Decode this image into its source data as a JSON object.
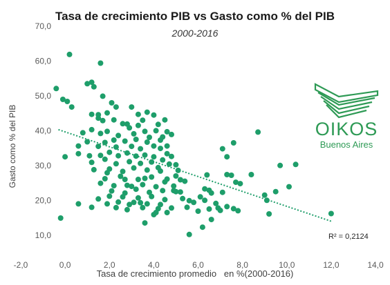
{
  "chart_data": {
    "type": "scatter",
    "title": "Tasa de crecimiento PIB vs Gasto como % del PIB",
    "subtitle": "2000-2016",
    "xlabel": "Tasa de crecimiento promedio   en %(2000-2016)",
    "ylabel": "Gasto como % del PIB",
    "xlim": [
      -2,
      14
    ],
    "ylim": [
      5,
      70
    ],
    "x_ticks": [
      "-2,0",
      "0,0",
      "2,0",
      "4,0",
      "6,0",
      "8,0",
      "10,0",
      "12,0",
      "14,0"
    ],
    "y_ticks": [
      "10,0",
      "20,0",
      "30,0",
      "40,0",
      "50,0",
      "60,0",
      "70,0"
    ],
    "grid": false,
    "marker_color": "#1e9e6a",
    "trendline": {
      "type": "linear",
      "style": "dotted",
      "x": [
        -0.3,
        12.0
      ],
      "y": [
        40.3,
        14.0
      ],
      "r2_label": "R² = 0,2124"
    },
    "points": [
      [
        0.2,
        61.9
      ],
      [
        1.6,
        59.4
      ],
      [
        -0.4,
        52.1
      ],
      [
        1.0,
        53.5
      ],
      [
        1.2,
        53.9
      ],
      [
        1.3,
        52.6
      ],
      [
        -0.1,
        49.0
      ],
      [
        0.1,
        48.4
      ],
      [
        0.3,
        46.8
      ],
      [
        1.7,
        49.9
      ],
      [
        2.1,
        48.0
      ],
      [
        2.3,
        46.8
      ],
      [
        1.2,
        44.7
      ],
      [
        1.5,
        44.6
      ],
      [
        1.9,
        45.1
      ],
      [
        2.2,
        43.1
      ],
      [
        1.5,
        43.6
      ],
      [
        3.0,
        46.8
      ],
      [
        3.3,
        44.7
      ],
      [
        3.5,
        43.0
      ],
      [
        3.7,
        45.3
      ],
      [
        4.0,
        44.5
      ],
      [
        4.2,
        41.8
      ],
      [
        4.5,
        43.1
      ],
      [
        0.8,
        39.4
      ],
      [
        1.2,
        40.3
      ],
      [
        1.6,
        39.2
      ],
      [
        1.9,
        39.8
      ],
      [
        2.2,
        37.3
      ],
      [
        2.6,
        42.0
      ],
      [
        2.8,
        41.9
      ],
      [
        3.1,
        39.1
      ],
      [
        3.3,
        41.5
      ],
      [
        3.6,
        39.8
      ],
      [
        3.8,
        38.1
      ],
      [
        4.1,
        40.0
      ],
      [
        4.4,
        38.2
      ],
      [
        4.6,
        39.7
      ],
      [
        4.8,
        38.9
      ],
      [
        0.6,
        35.6
      ],
      [
        1.0,
        36.8
      ],
      [
        1.5,
        35.5
      ],
      [
        1.8,
        36.6
      ],
      [
        2.3,
        35.3
      ],
      [
        2.7,
        37.0
      ],
      [
        3.0,
        35.5
      ],
      [
        3.4,
        34.8
      ],
      [
        3.7,
        36.7
      ],
      [
        4.0,
        35.6
      ],
      [
        4.3,
        34.9
      ],
      [
        4.6,
        35.6
      ],
      [
        0.6,
        33.4
      ],
      [
        1.1,
        32.8
      ],
      [
        1.6,
        32.9
      ],
      [
        2.0,
        33.8
      ],
      [
        2.4,
        32.8
      ],
      [
        2.8,
        33.6
      ],
      [
        3.2,
        32.7
      ],
      [
        3.6,
        33.0
      ],
      [
        4.0,
        32.5
      ],
      [
        4.4,
        31.6
      ],
      [
        4.8,
        32.6
      ],
      [
        0.0,
        32.5
      ],
      [
        1.2,
        30.9
      ],
      [
        1.8,
        31.8
      ],
      [
        2.3,
        30.5
      ],
      [
        2.9,
        31.1
      ],
      [
        3.4,
        30.6
      ],
      [
        3.9,
        31.0
      ],
      [
        4.2,
        29.4
      ],
      [
        4.7,
        30.4
      ],
      [
        5.0,
        30.2
      ],
      [
        1.3,
        28.8
      ],
      [
        2.0,
        29.0
      ],
      [
        2.6,
        28.3
      ],
      [
        3.1,
        29.3
      ],
      [
        3.7,
        28.7
      ],
      [
        4.3,
        28.4
      ],
      [
        5.1,
        28.6
      ],
      [
        1.8,
        26.2
      ],
      [
        2.5,
        26.9
      ],
      [
        3.3,
        26.0
      ],
      [
        3.9,
        26.7
      ],
      [
        4.6,
        26.1
      ],
      [
        5.2,
        25.9
      ],
      [
        1.6,
        24.9
      ],
      [
        2.2,
        24.2
      ],
      [
        2.8,
        24.3
      ],
      [
        3.5,
        24.5
      ],
      [
        4.1,
        23.9
      ],
      [
        4.9,
        24.1
      ],
      [
        2.1,
        22.7
      ],
      [
        2.7,
        22.1
      ],
      [
        3.2,
        23.2
      ],
      [
        3.8,
        22.3
      ],
      [
        4.4,
        22.8
      ],
      [
        5.0,
        22.5
      ],
      [
        1.5,
        20.4
      ],
      [
        2.0,
        21.2
      ],
      [
        2.6,
        21.0
      ],
      [
        3.3,
        20.7
      ],
      [
        3.9,
        21.1
      ],
      [
        4.5,
        20.2
      ],
      [
        5.3,
        20.5
      ],
      [
        0.6,
        19.0
      ],
      [
        1.9,
        19.0
      ],
      [
        2.4,
        19.5
      ],
      [
        3.1,
        19.4
      ],
      [
        3.7,
        19.0
      ],
      [
        4.3,
        18.8
      ],
      [
        5.6,
        19.9
      ],
      [
        1.2,
        18.0
      ],
      [
        2.8,
        17.3
      ],
      [
        3.5,
        17.9
      ],
      [
        4.1,
        16.5
      ],
      [
        4.8,
        17.8
      ],
      [
        5.5,
        18.0
      ],
      [
        4.0,
        15.9
      ],
      [
        3.6,
        13.5
      ],
      [
        -0.2,
        14.9
      ],
      [
        5.6,
        10.2
      ],
      [
        6.2,
        12.3
      ],
      [
        6.4,
        27.3
      ],
      [
        6.3,
        23.3
      ],
      [
        6.6,
        22.1
      ],
      [
        6.5,
        17.5
      ],
      [
        6.8,
        19.1
      ],
      [
        6.9,
        17.8
      ],
      [
        7.1,
        34.8
      ],
      [
        7.3,
        32.5
      ],
      [
        7.3,
        27.4
      ],
      [
        7.5,
        27.2
      ],
      [
        7.6,
        36.5
      ],
      [
        7.7,
        25.2
      ],
      [
        7.9,
        24.8
      ],
      [
        7.3,
        18.2
      ],
      [
        7.6,
        17.6
      ],
      [
        7.8,
        17.0
      ],
      [
        7.0,
        17.1
      ],
      [
        6.6,
        14.5
      ],
      [
        7.1,
        22.3
      ],
      [
        8.7,
        39.6
      ],
      [
        8.4,
        27.4
      ],
      [
        9.0,
        21.5
      ],
      [
        9.1,
        20.0
      ],
      [
        9.2,
        16.1
      ],
      [
        9.5,
        22.5
      ],
      [
        9.7,
        30.0
      ],
      [
        10.1,
        23.9
      ],
      [
        10.4,
        30.3
      ],
      [
        12.0,
        16.2
      ],
      [
        5.8,
        19.4
      ],
      [
        6.1,
        21.0
      ],
      [
        6.3,
        20.0
      ],
      [
        6.5,
        22.9
      ],
      [
        6.0,
        16.9
      ],
      [
        5.4,
        25.5
      ],
      [
        5.2,
        22.4
      ],
      [
        5.0,
        27.0
      ],
      [
        4.6,
        33.4
      ],
      [
        4.3,
        37.3
      ],
      [
        3.2,
        37.5
      ],
      [
        2.9,
        40.8
      ],
      [
        2.4,
        38.6
      ],
      [
        1.7,
        42.9
      ],
      [
        1.9,
        27.9
      ],
      [
        2.7,
        26.0
      ],
      [
        3.0,
        24.0
      ],
      [
        3.6,
        26.3
      ],
      [
        4.5,
        25.3
      ],
      [
        4.9,
        22.8
      ],
      [
        3.4,
        19.3
      ],
      [
        2.3,
        17.9
      ],
      [
        2.9,
        18.8
      ],
      [
        4.6,
        16.5
      ],
      [
        4.2,
        17.6
      ]
    ]
  },
  "logo": {
    "main": "OIKOS",
    "sub": "Buenos Aires"
  }
}
